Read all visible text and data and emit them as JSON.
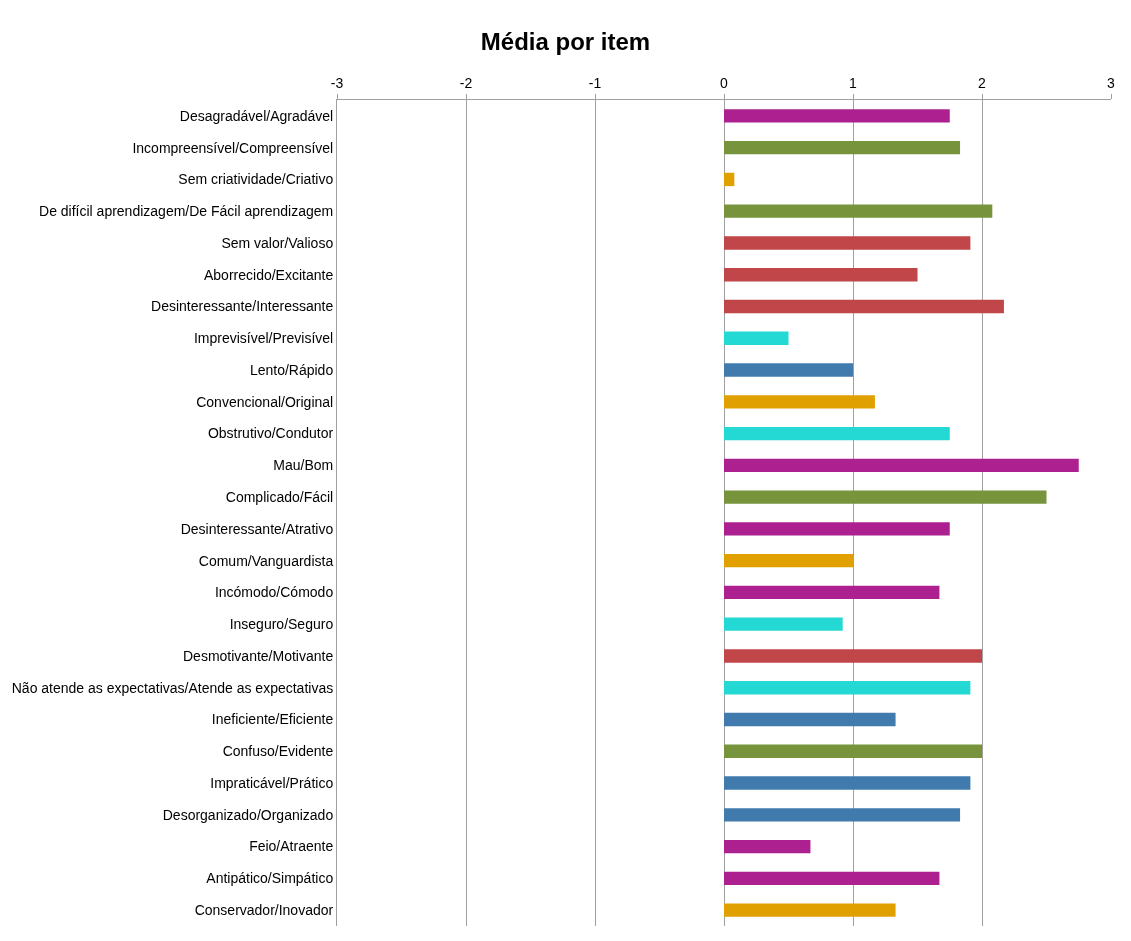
{
  "chart_data": {
    "type": "bar",
    "orientation": "horizontal",
    "title": "Média por item",
    "categories": [
      "Desagradável/Agradável",
      "Incompreensível/Compreensível",
      "Sem criatividade/Criativo",
      "De difícil aprendizagem/De Fácil aprendizagem",
      "Sem valor/Valioso",
      "Aborrecido/Excitante",
      "Desinteressante/Interessante",
      "Imprevisível/Previsível",
      "Lento/Rápido",
      "Convencional/Original",
      "Obstrutivo/Condutor",
      "Mau/Bom",
      "Complicado/Fácil",
      "Desinteressante/Atrativo",
      "Comum/Vanguardista",
      "Incómodo/Cómodo",
      "Inseguro/Seguro",
      "Desmotivante/Motivante",
      "Não atende as expectativas/Atende as expectativas",
      "Ineficiente/Eficiente",
      "Confuso/Evidente",
      "Impraticável/Prático",
      "Desorganizado/Organizado",
      "Feio/Atraente",
      "Antipático/Simpático",
      "Conservador/Inovador"
    ],
    "values": [
      1.75,
      1.83,
      0.08,
      2.08,
      1.91,
      1.5,
      2.17,
      0.5,
      1.0,
      1.17,
      1.75,
      2.75,
      2.5,
      1.75,
      1.0,
      1.67,
      0.92,
      2.0,
      1.91,
      1.33,
      2.0,
      1.91,
      1.83,
      0.67,
      1.67,
      1.33
    ],
    "colors": [
      "#ac2090",
      "#77933c",
      "#e0a000",
      "#77933c",
      "#c0464a",
      "#c0464a",
      "#c0464a",
      "#24d8d4",
      "#417bad",
      "#e0a000",
      "#24d8d4",
      "#ac2090",
      "#77933c",
      "#ac2090",
      "#e0a000",
      "#ac2090",
      "#24d8d4",
      "#c0464a",
      "#24d8d4",
      "#417bad",
      "#77933c",
      "#417bad",
      "#417bad",
      "#ac2090",
      "#ac2090",
      "#e0a000"
    ],
    "xlim": [
      -3,
      3
    ],
    "xticks": [
      -3,
      -2,
      -1,
      0,
      1,
      2,
      3
    ],
    "grid": "x"
  }
}
